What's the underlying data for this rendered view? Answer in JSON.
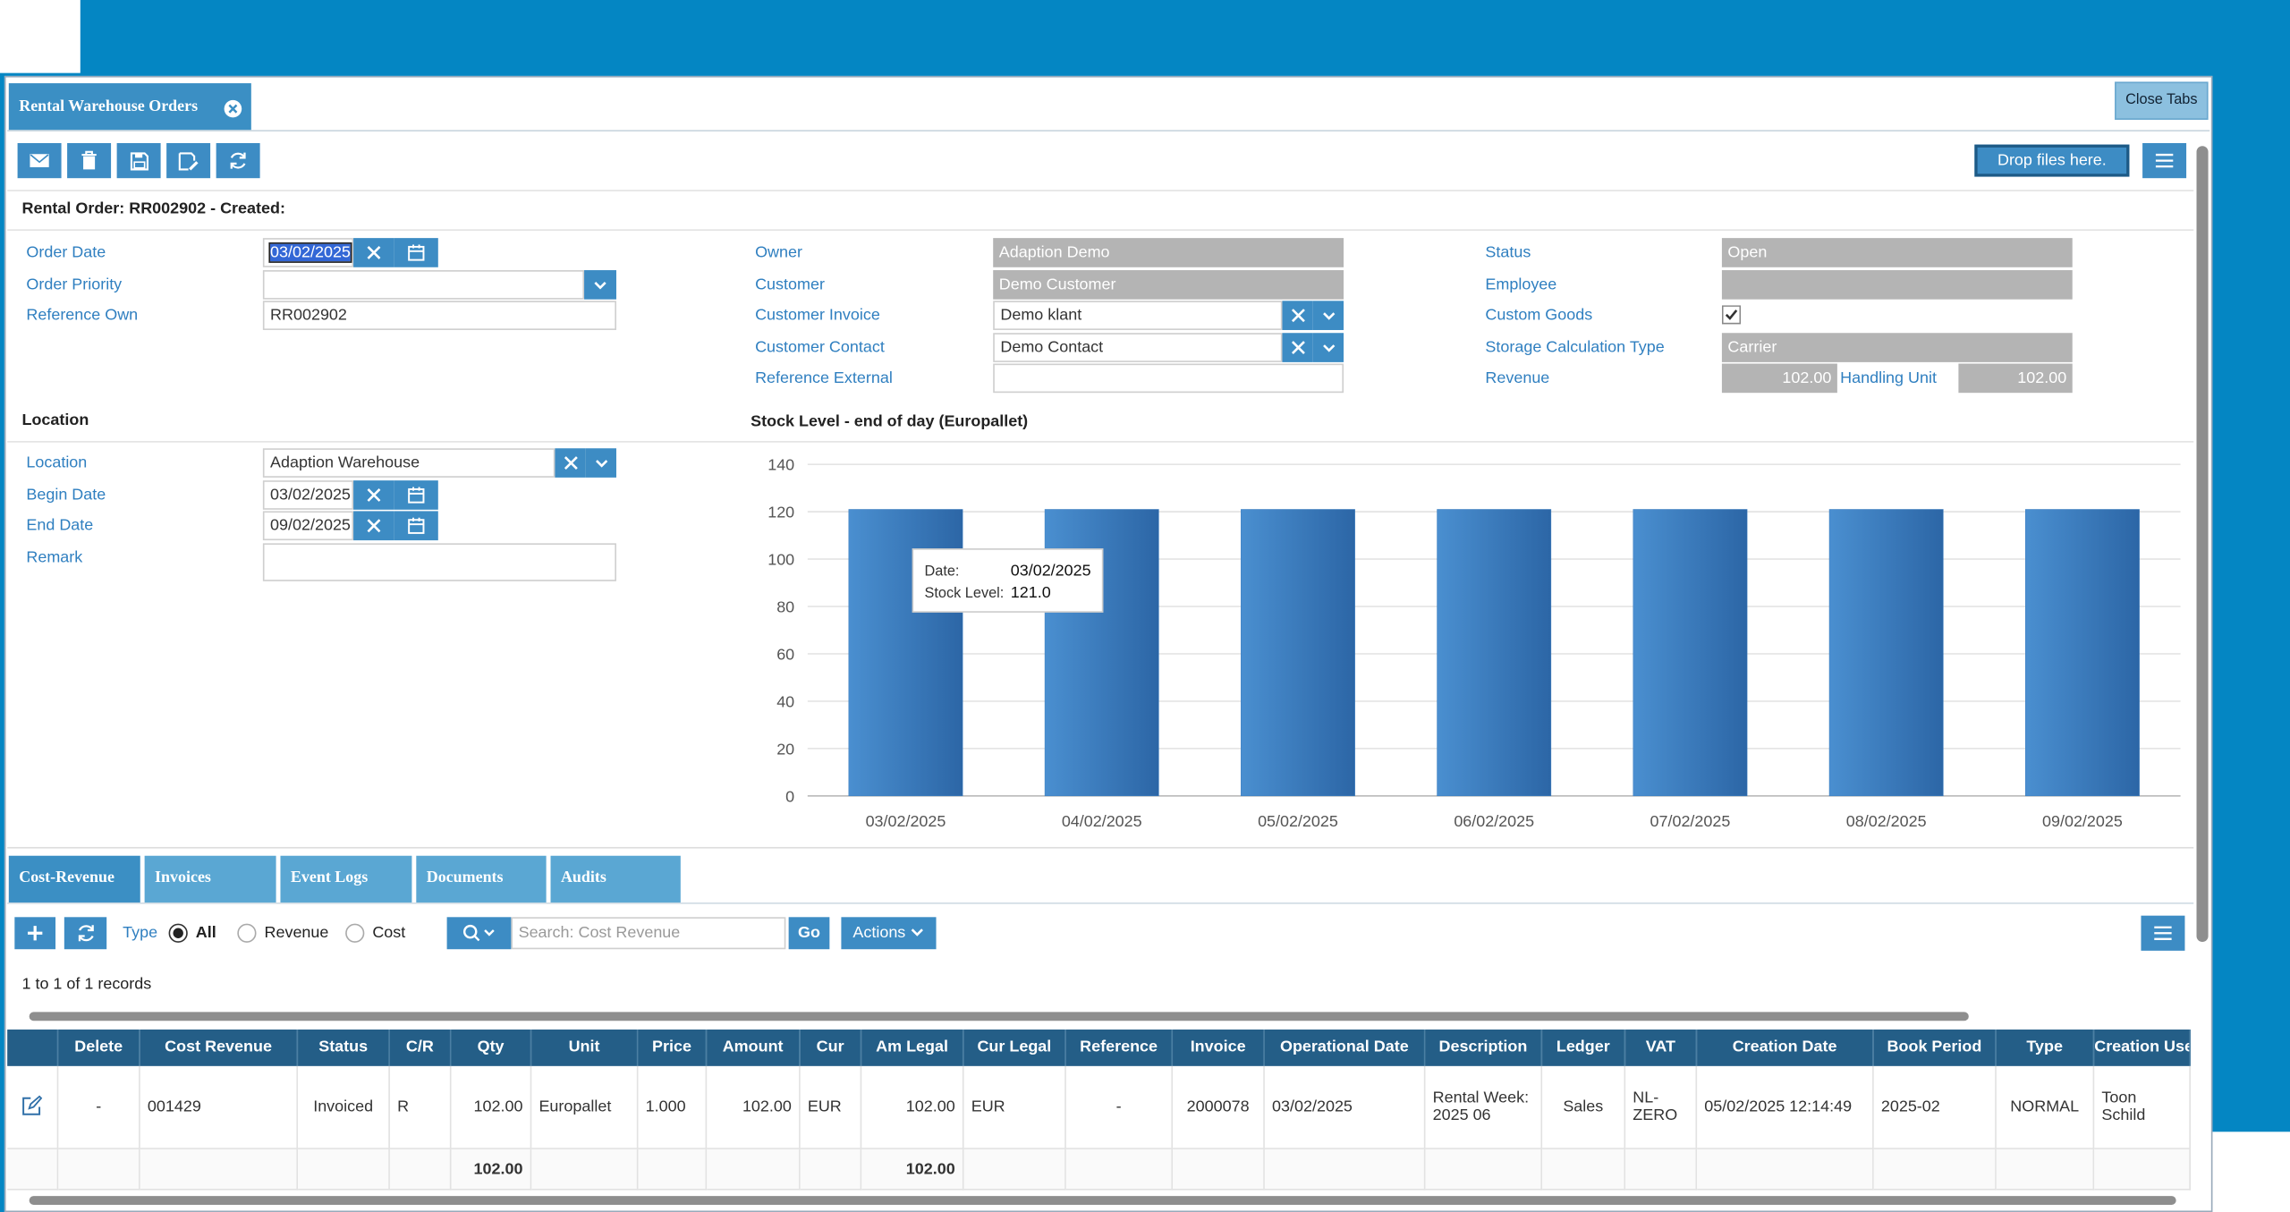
{
  "tabs": {
    "main": "Rental Warehouse Orders",
    "close": "Close Tabs",
    "drop": "Drop files here."
  },
  "form": {
    "title": "Rental Order: RR002902 - Created:",
    "left": [
      {
        "label": "Order Date",
        "value": "03/02/2025"
      },
      {
        "label": "Order Priority"
      },
      {
        "label": "Reference Own",
        "value": "RR002902"
      }
    ],
    "middle": [
      {
        "label": "Owner",
        "value": "Adaption Demo"
      },
      {
        "label": "Customer",
        "value": "Demo Customer"
      },
      {
        "label": "Customer Invoice",
        "value": "Demo klant"
      },
      {
        "label": "Customer Contact",
        "value": "Demo Contact"
      },
      {
        "label": "Reference External"
      }
    ],
    "right": [
      {
        "label": "Status",
        "value": "Open"
      },
      {
        "label": "Employee"
      },
      {
        "label": "Custom Goods",
        "checked": true
      },
      {
        "label": "Storage Calculation Type",
        "value": "Carrier"
      },
      {
        "label": "Revenue",
        "value": "102.00"
      }
    ],
    "handling_unit": {
      "label": "Handling Unit",
      "value": "102.00"
    }
  },
  "location": {
    "title": "Location",
    "fields": [
      {
        "label": "Location",
        "value": "Adaption Warehouse"
      },
      {
        "label": "Begin Date",
        "value": "03/02/2025"
      },
      {
        "label": "End Date",
        "value": "09/02/2025"
      },
      {
        "label": "Remark"
      }
    ]
  },
  "chart_data": {
    "type": "bar",
    "title": "Stock Level - end of day (Europallet)",
    "categories": [
      "03/02/2025",
      "04/02/2025",
      "05/02/2025",
      "06/02/2025",
      "07/02/2025",
      "08/02/2025",
      "09/02/2025"
    ],
    "values": [
      121,
      121,
      121,
      121,
      121,
      121,
      121
    ],
    "color": "#3a7dbf",
    "ylim": [
      0,
      140
    ],
    "yticks": [
      0,
      20,
      40,
      60,
      80,
      100,
      120,
      140
    ],
    "grid": true,
    "tooltip": {
      "date_label": "Date:",
      "date": "03/02/2025",
      "value_label": "Stock Level:",
      "value": "121.0"
    }
  },
  "subtabs": [
    "Cost-Revenue",
    "Invoices",
    "Event Logs",
    "Documents",
    "Audits"
  ],
  "toolbar": {
    "type_label": "Type",
    "options": [
      "All",
      "Revenue",
      "Cost"
    ],
    "search_placeholder": "Search: Cost Revenue",
    "go": "Go",
    "actions": "Actions"
  },
  "records": "1 to 1 of 1 records",
  "table": {
    "columns": [
      null,
      "Delete",
      "Cost Revenue",
      "Status",
      "C/R",
      "Qty",
      "Unit",
      "Price",
      "Amount",
      "Cur",
      "Am Legal",
      "Cur Legal",
      "Reference",
      "Invoice",
      "Operational Date",
      "Description",
      "Ledger",
      "VAT",
      "Creation Date",
      "Book Period",
      "Type",
      "Creation User"
    ],
    "rows": [
      [
        null,
        "-",
        "001429",
        "Invoiced",
        "R",
        "102.00",
        "Europallet",
        "1.000",
        "102.00",
        "EUR",
        "102.00",
        "EUR",
        "-",
        "2000078",
        "03/02/2025",
        "Rental Week: 2025 06",
        "Sales",
        "NL-ZERO",
        "05/02/2025 12:14:49",
        "2025-02",
        "NORMAL",
        "Toon Schild"
      ]
    ],
    "totals": [
      null,
      null,
      null,
      null,
      null,
      "102.00",
      null,
      null,
      null,
      null,
      "102.00",
      null,
      null,
      null,
      null,
      null,
      null,
      null,
      null,
      null,
      null,
      null
    ]
  }
}
